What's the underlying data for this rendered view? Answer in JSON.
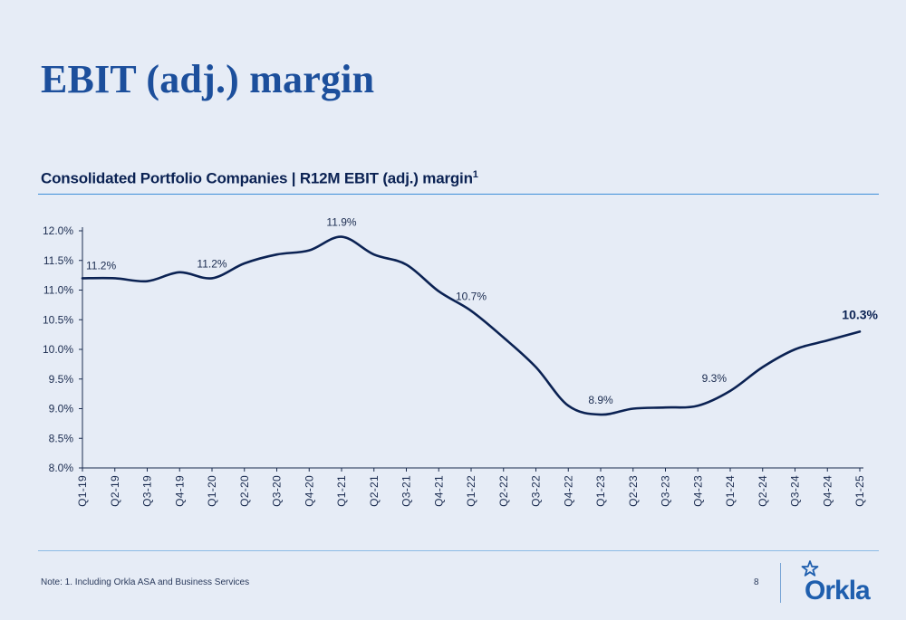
{
  "page": {
    "title": "EBIT (adj.) margin",
    "subtitle": "Consolidated Portfolio Companies | R12M EBIT (adj.) margin",
    "subtitle_sup": "1",
    "note": "Note: 1. Including Orkla ASA and Business Services",
    "page_number": "8",
    "logo_text": "Orkla"
  },
  "colors": {
    "title": "#1c4f9c",
    "line": "#0b2253",
    "rule": "#3d8fd9",
    "logo": "#1f5fae",
    "background": "#e6ecf6"
  },
  "chart_data": {
    "type": "line",
    "categories": [
      "Q1-19",
      "Q2-19",
      "Q3-19",
      "Q4-19",
      "Q1-20",
      "Q2-20",
      "Q3-20",
      "Q4-20",
      "Q1-21",
      "Q2-21",
      "Q3-21",
      "Q4-21",
      "Q1-22",
      "Q2-22",
      "Q3-22",
      "Q4-22",
      "Q1-23",
      "Q2-23",
      "Q3-23",
      "Q4-23",
      "Q1-24",
      "Q2-24",
      "Q3-24",
      "Q4-24",
      "Q1-25"
    ],
    "series": [
      {
        "values": [
          11.2,
          11.2,
          11.15,
          11.3,
          11.2,
          11.45,
          11.6,
          11.67,
          11.9,
          11.6,
          11.43,
          10.98,
          10.65,
          10.2,
          9.7,
          9.05,
          8.9,
          9.0,
          9.02,
          9.05,
          9.3,
          9.7,
          10.0,
          10.15,
          10.3
        ]
      }
    ],
    "ylim": [
      8.0,
      12.0
    ],
    "yticks": [
      "8.0%",
      "8.5%",
      "9.0%",
      "9.5%",
      "10.0%",
      "10.5%",
      "11.0%",
      "11.5%",
      "12.0%"
    ],
    "ytick_values": [
      8.0,
      8.5,
      9.0,
      9.5,
      10.0,
      10.5,
      11.0,
      11.5,
      12.0
    ],
    "data_labels": [
      {
        "index": 0,
        "text": "11.2%",
        "bold": false
      },
      {
        "index": 4,
        "text": "11.2%",
        "bold": false
      },
      {
        "index": 8,
        "text": "11.9%",
        "bold": false
      },
      {
        "index": 12,
        "text": "10.7%",
        "bold": false
      },
      {
        "index": 16,
        "text": "8.9%",
        "bold": false
      },
      {
        "index": 20,
        "text": "9.3%",
        "bold": false
      },
      {
        "index": 24,
        "text": "10.3%",
        "bold": true
      }
    ],
    "grid": false,
    "xlabel": "",
    "ylabel": ""
  }
}
